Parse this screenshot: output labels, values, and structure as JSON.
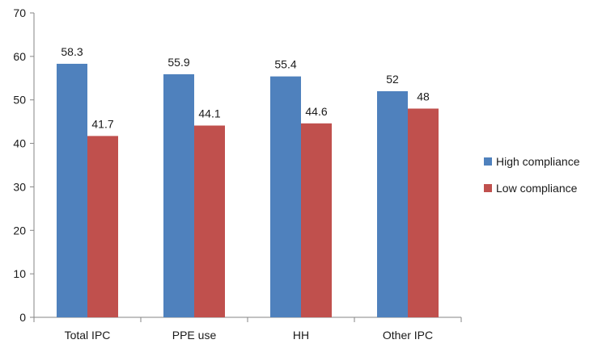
{
  "chart_data": {
    "type": "bar",
    "title": "",
    "xlabel": "",
    "ylabel": "",
    "categories": [
      "Total IPC",
      "PPE use",
      "HH",
      "Other IPC"
    ],
    "series": [
      {
        "name": "High compliance",
        "values": [
          58.3,
          55.9,
          55.4,
          52
        ],
        "labels": [
          "58.3",
          "55.9",
          "55.4",
          "52"
        ],
        "color": "#4F81BD"
      },
      {
        "name": "Low compliance",
        "values": [
          41.7,
          44.1,
          44.6,
          48
        ],
        "labels": [
          "41.7",
          "44.1",
          "44.6",
          "48"
        ],
        "color": "#C0504D"
      }
    ],
    "ylim": [
      0,
      70
    ],
    "yticks": [
      "0",
      "10",
      "20",
      "30",
      "40",
      "50",
      "60",
      "70"
    ],
    "grid": false,
    "legend": "right"
  }
}
